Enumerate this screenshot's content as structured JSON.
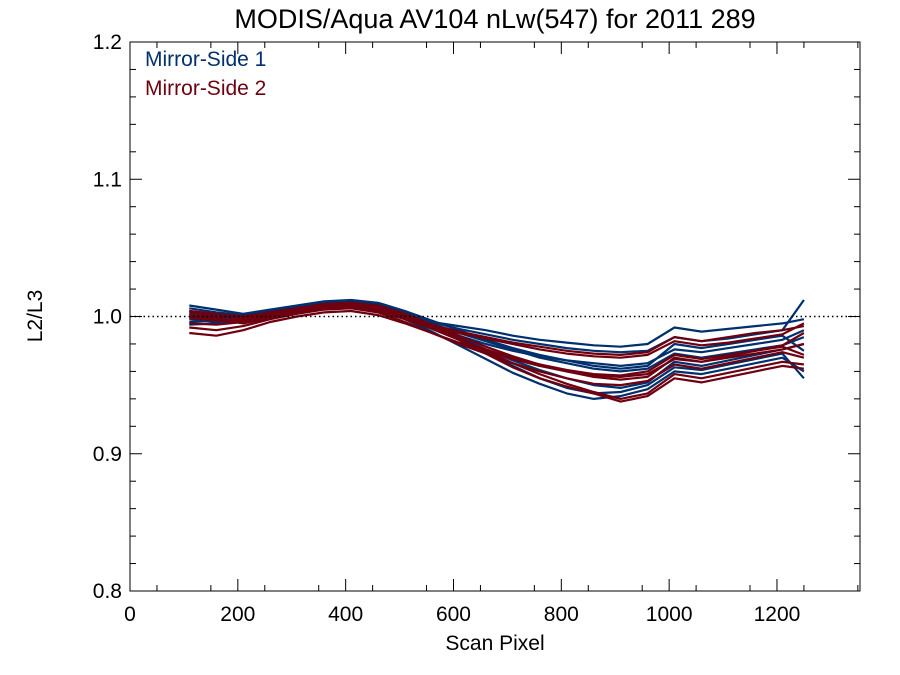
{
  "colors": {
    "ms1": "#00306e",
    "ms2": "#6e0010",
    "axis": "#000000",
    "background": "#ffffff"
  },
  "chart_data": {
    "type": "line",
    "title": "MODIS/Aqua AV104 nLw(547) for 2011 289",
    "xlabel": "Scan Pixel",
    "ylabel": "L2/L3",
    "xlim": [
      0,
      1354
    ],
    "ylim": [
      0.8,
      1.2
    ],
    "xticks": [
      0,
      200,
      400,
      600,
      800,
      1000,
      1200
    ],
    "yticks": [
      0.8,
      0.9,
      1.0,
      1.1,
      1.2
    ],
    "xtick_labels": [
      "0",
      "200",
      "400",
      "600",
      "800",
      "1000",
      "1200"
    ],
    "ytick_labels": [
      "0.8",
      "0.9",
      "1.0",
      "1.1",
      "1.2"
    ],
    "reference_line": 1.0,
    "reference_style": "dotted",
    "grid": false,
    "legend_position": "top-left",
    "x": [
      110,
      160,
      210,
      260,
      310,
      360,
      410,
      460,
      510,
      560,
      610,
      660,
      710,
      760,
      810,
      860,
      910,
      960,
      1010,
      1060,
      1110,
      1160,
      1210,
      1250
    ],
    "series": [
      {
        "name": "Mirror-Side 1",
        "group": "ms1",
        "values": [
          1.004,
          1.001,
          0.999,
          1.003,
          1.006,
          1.009,
          1.01,
          1.008,
          1.002,
          0.996,
          0.991,
          0.987,
          0.983,
          0.98,
          0.977,
          0.975,
          0.974,
          0.975,
          0.985,
          0.982,
          0.984,
          0.987,
          0.99,
          1.012
        ]
      },
      {
        "name": "Mirror-Side 1",
        "group": "ms1",
        "values": [
          0.998,
          0.996,
          0.998,
          1.002,
          1.005,
          1.008,
          1.009,
          1.006,
          0.999,
          0.992,
          0.986,
          0.98,
          0.975,
          0.971,
          0.968,
          0.966,
          0.964,
          0.966,
          0.976,
          0.974,
          0.977,
          0.98,
          0.983,
          0.99
        ]
      },
      {
        "name": "Mirror-Side 1",
        "group": "ms1",
        "values": [
          1.006,
          1.003,
          1.001,
          1.004,
          1.007,
          1.01,
          1.011,
          1.009,
          1.003,
          0.994,
          0.985,
          0.976,
          0.968,
          0.961,
          0.955,
          0.95,
          0.948,
          0.952,
          0.967,
          0.964,
          0.968,
          0.972,
          0.976,
          0.98
        ]
      },
      {
        "name": "Mirror-Side 1",
        "group": "ms1",
        "values": [
          0.994,
          0.995,
          0.997,
          1.001,
          1.004,
          1.007,
          1.008,
          1.005,
          0.998,
          0.989,
          0.979,
          0.969,
          0.959,
          0.951,
          0.944,
          0.94,
          0.942,
          0.947,
          0.96,
          0.958,
          0.962,
          0.966,
          0.97,
          0.96
        ]
      },
      {
        "name": "Mirror-Side 1",
        "group": "ms1",
        "values": [
          1.002,
          0.999,
          0.996,
          1.0,
          1.003,
          1.006,
          1.007,
          1.004,
          1.0,
          0.996,
          0.993,
          0.99,
          0.986,
          0.983,
          0.981,
          0.979,
          0.978,
          0.98,
          0.992,
          0.989,
          0.991,
          0.993,
          0.995,
          0.998
        ]
      },
      {
        "name": "Mirror-Side 1",
        "group": "ms1",
        "values": [
          1.008,
          1.005,
          1.002,
          1.005,
          1.008,
          1.011,
          1.012,
          1.01,
          1.004,
          0.997,
          0.99,
          0.983,
          0.977,
          0.972,
          0.968,
          0.964,
          0.962,
          0.964,
          0.98,
          0.977,
          0.98,
          0.983,
          0.986,
          0.975
        ]
      },
      {
        "name": "Mirror-Side 1",
        "group": "ms1",
        "values": [
          0.996,
          0.997,
          0.999,
          1.003,
          1.006,
          1.009,
          1.01,
          1.007,
          1.001,
          0.993,
          0.984,
          0.974,
          0.964,
          0.955,
          0.948,
          0.944,
          0.945,
          0.95,
          0.963,
          0.961,
          0.965,
          0.969,
          0.973,
          0.955
        ]
      },
      {
        "name": "Mirror-Side 1",
        "group": "ms1",
        "values": [
          1.0,
          1.0,
          1.0,
          1.004,
          1.007,
          1.01,
          1.011,
          1.008,
          1.002,
          0.995,
          0.988,
          0.982,
          0.976,
          0.97,
          0.966,
          0.962,
          0.96,
          0.962,
          0.973,
          0.97,
          0.973,
          0.976,
          0.979,
          0.985
        ]
      },
      {
        "name": "Mirror-Side 2",
        "group": "ms2",
        "values": [
          1.001,
          0.998,
          0.995,
          0.999,
          1.003,
          1.006,
          1.007,
          1.005,
          0.999,
          0.993,
          0.988,
          0.984,
          0.98,
          0.976,
          0.973,
          0.971,
          0.97,
          0.972,
          0.982,
          0.979,
          0.981,
          0.984,
          0.987,
          0.995
        ]
      },
      {
        "name": "Mirror-Side 2",
        "group": "ms2",
        "values": [
          0.992,
          0.99,
          0.993,
          0.998,
          1.002,
          1.005,
          1.006,
          1.003,
          0.996,
          0.988,
          0.98,
          0.973,
          0.966,
          0.96,
          0.955,
          0.951,
          0.95,
          0.953,
          0.965,
          0.962,
          0.966,
          0.97,
          0.974,
          0.97
        ]
      },
      {
        "name": "Mirror-Side 2",
        "group": "ms2",
        "values": [
          1.003,
          1.0,
          0.998,
          1.002,
          1.005,
          1.008,
          1.009,
          1.007,
          1.001,
          0.993,
          0.984,
          0.975,
          0.966,
          0.958,
          0.951,
          0.945,
          0.94,
          0.944,
          0.958,
          0.955,
          0.959,
          0.963,
          0.967,
          0.965
        ]
      },
      {
        "name": "Mirror-Side 2",
        "group": "ms2",
        "values": [
          0.988,
          0.986,
          0.99,
          0.996,
          1.0,
          1.003,
          1.004,
          1.001,
          0.995,
          0.988,
          0.981,
          0.975,
          0.969,
          0.964,
          0.96,
          0.957,
          0.956,
          0.958,
          0.969,
          0.967,
          0.97,
          0.973,
          0.976,
          0.98
        ]
      },
      {
        "name": "Mirror-Side 2",
        "group": "ms2",
        "values": [
          0.999,
          0.997,
          0.997,
          1.001,
          1.004,
          1.007,
          1.008,
          1.006,
          1.0,
          0.994,
          0.989,
          0.985,
          0.981,
          0.978,
          0.975,
          0.973,
          0.972,
          0.974,
          0.985,
          0.982,
          0.985,
          0.988,
          0.99,
          0.993
        ]
      },
      {
        "name": "Mirror-Side 2",
        "group": "ms2",
        "values": [
          1.004,
          1.002,
          1.0,
          1.003,
          1.006,
          1.009,
          1.01,
          1.008,
          1.002,
          0.994,
          0.986,
          0.978,
          0.971,
          0.965,
          0.96,
          0.956,
          0.954,
          0.956,
          0.97,
          0.967,
          0.971,
          0.975,
          0.979,
          0.988
        ]
      },
      {
        "name": "Mirror-Side 2",
        "group": "ms2",
        "values": [
          0.995,
          0.994,
          0.996,
          1.0,
          1.003,
          1.006,
          1.007,
          1.004,
          0.998,
          0.991,
          0.983,
          0.976,
          0.97,
          0.965,
          0.961,
          0.958,
          0.957,
          0.96,
          0.972,
          0.969,
          0.972,
          0.975,
          0.978,
          0.972
        ]
      },
      {
        "name": "Mirror-Side 2",
        "group": "ms2",
        "values": [
          1.0,
          0.999,
          0.999,
          1.003,
          1.006,
          1.009,
          1.01,
          1.007,
          1.0,
          0.992,
          0.983,
          0.973,
          0.963,
          0.955,
          0.949,
          0.944,
          0.938,
          0.942,
          0.955,
          0.952,
          0.956,
          0.96,
          0.964,
          0.962
        ]
      }
    ],
    "legend": [
      {
        "label": "Mirror-Side 1",
        "color": "#00306e"
      },
      {
        "label": "Mirror-Side 2",
        "color": "#6e0010"
      }
    ]
  }
}
